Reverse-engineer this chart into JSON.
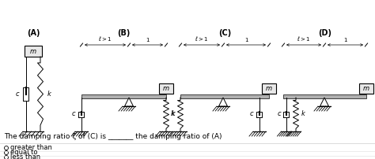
{
  "background_color": "#ffffff",
  "question_text": "The damping ratio ζ of (C) is _______ the damping ratio of (A)",
  "options": [
    "greater than",
    "equal to",
    "less than"
  ],
  "system_labels": [
    "(A)",
    "(B)",
    "(C)",
    "(D)"
  ],
  "label_fontsize": 7,
  "option_fontsize": 6.5,
  "question_fontsize": 6.5
}
